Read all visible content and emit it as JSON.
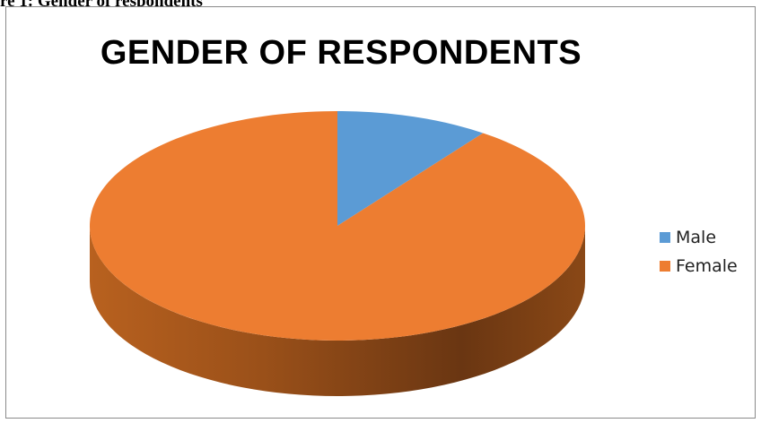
{
  "caption": "re 1: Gender of respondents",
  "chart_data": {
    "type": "pie",
    "title": "GENDER OF RESPONDENTS",
    "style": "3d",
    "legend_position": "right",
    "series": [
      {
        "name": "Male",
        "value": 10,
        "color": "#5b9bd5"
      },
      {
        "name": "Female",
        "value": 90,
        "color": "#ed7d31"
      }
    ]
  }
}
